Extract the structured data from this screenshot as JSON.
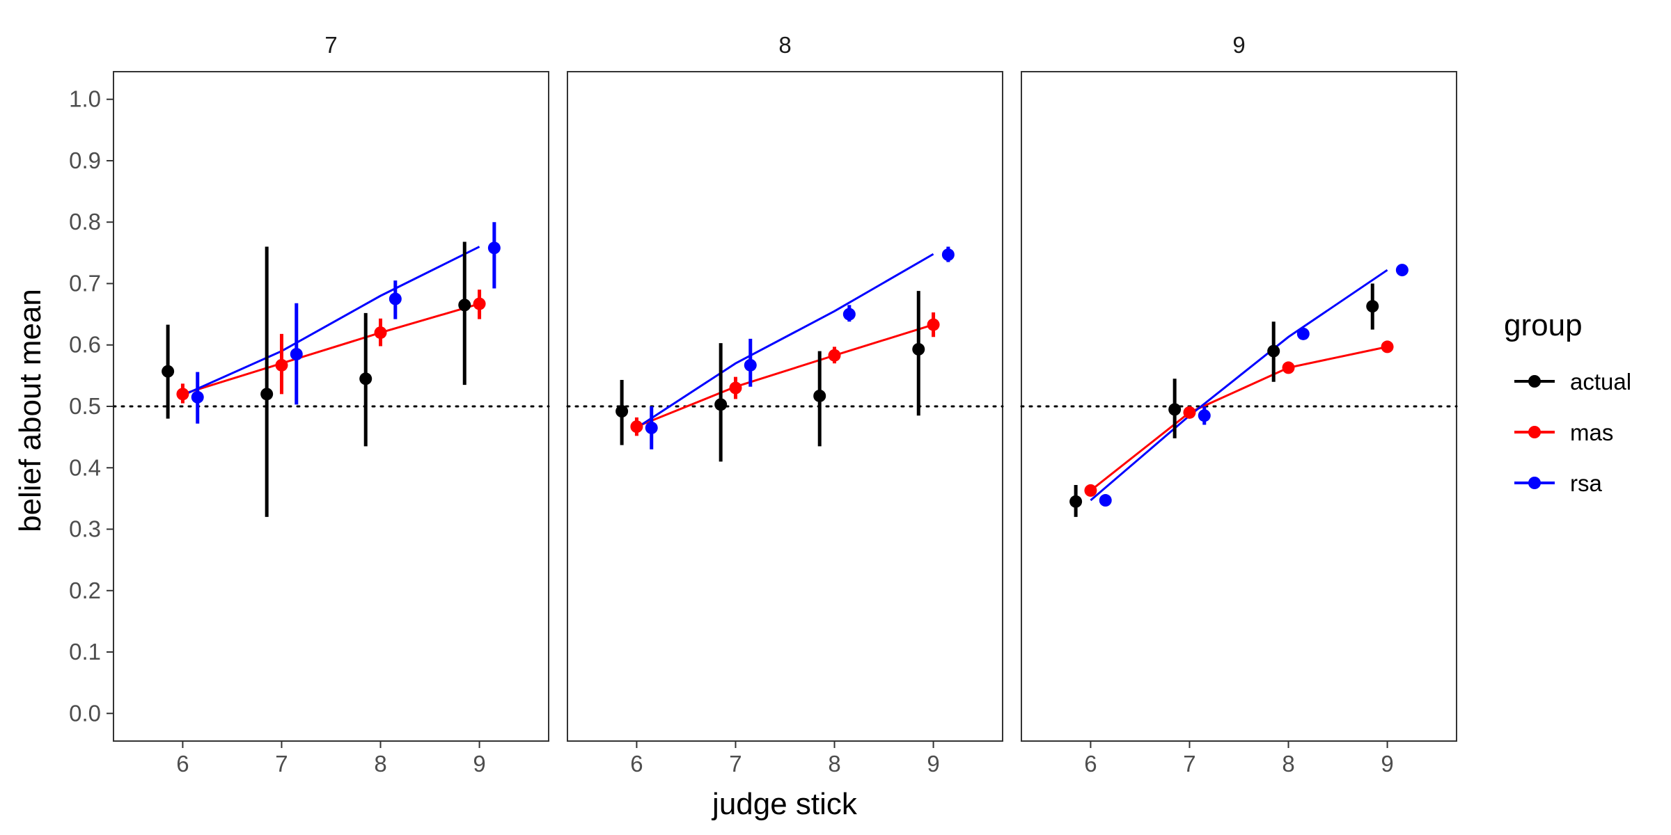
{
  "chart_data": {
    "type": "scatter",
    "title": "",
    "xlabel": "judge stick",
    "ylabel": "belief about mean",
    "ylim": [
      -0.045,
      1.045
    ],
    "xlim": [
      5.3,
      9.7
    ],
    "x_ticks": [
      "6",
      "7",
      "8",
      "9"
    ],
    "y_ticks": [
      "0.0",
      "0.1",
      "0.2",
      "0.3",
      "0.4",
      "0.5",
      "0.6",
      "0.7",
      "0.8",
      "0.9",
      "1.0"
    ],
    "reference_line": {
      "y": 0.5,
      "style": "dotted"
    },
    "grid": false,
    "legend": {
      "title": "group",
      "position": "right"
    },
    "groups": [
      {
        "name": "actual",
        "color": "#000000"
      },
      {
        "name": "mas",
        "color": "#ff0000"
      },
      {
        "name": "rsa",
        "color": "#0000ff"
      }
    ],
    "panels": [
      {
        "label": "7",
        "series": [
          {
            "group": "actual",
            "points": [
              {
                "x": 6,
                "y": 0.557,
                "lo": 0.48,
                "hi": 0.633
              },
              {
                "x": 7,
                "y": 0.52,
                "lo": 0.32,
                "hi": 0.76
              },
              {
                "x": 8,
                "y": 0.545,
                "lo": 0.435,
                "hi": 0.652
              },
              {
                "x": 9,
                "y": 0.665,
                "lo": 0.535,
                "hi": 0.768
              }
            ]
          },
          {
            "group": "mas",
            "points": [
              {
                "x": 6,
                "y": 0.52,
                "lo": 0.505,
                "hi": 0.537
              },
              {
                "x": 7,
                "y": 0.567,
                "lo": 0.52,
                "hi": 0.618
              },
              {
                "x": 8,
                "y": 0.62,
                "lo": 0.598,
                "hi": 0.643
              },
              {
                "x": 9,
                "y": 0.667,
                "lo": 0.642,
                "hi": 0.69
              }
            ],
            "line": [
              {
                "x": 6,
                "y": 0.52
              },
              {
                "x": 7,
                "y": 0.57
              },
              {
                "x": 8,
                "y": 0.62
              },
              {
                "x": 9,
                "y": 0.667
              }
            ]
          },
          {
            "group": "rsa",
            "points": [
              {
                "x": 6,
                "y": 0.515,
                "lo": 0.472,
                "hi": 0.556
              },
              {
                "x": 7,
                "y": 0.585,
                "lo": 0.503,
                "hi": 0.668
              },
              {
                "x": 8,
                "y": 0.675,
                "lo": 0.642,
                "hi": 0.705
              },
              {
                "x": 9,
                "y": 0.758,
                "lo": 0.692,
                "hi": 0.8
              }
            ],
            "line": [
              {
                "x": 6,
                "y": 0.518
              },
              {
                "x": 7,
                "y": 0.59
              },
              {
                "x": 8,
                "y": 0.68
              },
              {
                "x": 9,
                "y": 0.76
              }
            ]
          }
        ]
      },
      {
        "label": "8",
        "series": [
          {
            "group": "actual",
            "points": [
              {
                "x": 6,
                "y": 0.492,
                "lo": 0.437,
                "hi": 0.543
              },
              {
                "x": 7,
                "y": 0.503,
                "lo": 0.41,
                "hi": 0.603
              },
              {
                "x": 8,
                "y": 0.517,
                "lo": 0.435,
                "hi": 0.59
              },
              {
                "x": 9,
                "y": 0.593,
                "lo": 0.485,
                "hi": 0.688
              }
            ]
          },
          {
            "group": "mas",
            "points": [
              {
                "x": 6,
                "y": 0.467,
                "lo": 0.452,
                "hi": 0.482
              },
              {
                "x": 7,
                "y": 0.53,
                "lo": 0.512,
                "hi": 0.548
              },
              {
                "x": 8,
                "y": 0.583,
                "lo": 0.57,
                "hi": 0.597
              },
              {
                "x": 9,
                "y": 0.633,
                "lo": 0.613,
                "hi": 0.653
              }
            ],
            "line": [
              {
                "x": 6,
                "y": 0.467
              },
              {
                "x": 7,
                "y": 0.532
              },
              {
                "x": 8,
                "y": 0.583
              },
              {
                "x": 9,
                "y": 0.633
              }
            ]
          },
          {
            "group": "rsa",
            "points": [
              {
                "x": 6,
                "y": 0.465,
                "lo": 0.43,
                "hi": 0.5
              },
              {
                "x": 7,
                "y": 0.567,
                "lo": 0.532,
                "hi": 0.61
              },
              {
                "x": 8,
                "y": 0.65,
                "lo": 0.638,
                "hi": 0.665
              },
              {
                "x": 9,
                "y": 0.747,
                "lo": 0.735,
                "hi": 0.76
              }
            ],
            "line": [
              {
                "x": 6,
                "y": 0.465
              },
              {
                "x": 7,
                "y": 0.57
              },
              {
                "x": 8,
                "y": 0.655
              },
              {
                "x": 9,
                "y": 0.748
              }
            ]
          }
        ]
      },
      {
        "label": "9",
        "series": [
          {
            "group": "actual",
            "points": [
              {
                "x": 6,
                "y": 0.345,
                "lo": 0.32,
                "hi": 0.372
              },
              {
                "x": 7,
                "y": 0.495,
                "lo": 0.448,
                "hi": 0.545
              },
              {
                "x": 8,
                "y": 0.59,
                "lo": 0.54,
                "hi": 0.638
              },
              {
                "x": 9,
                "y": 0.663,
                "lo": 0.625,
                "hi": 0.7
              }
            ]
          },
          {
            "group": "mas",
            "points": [
              {
                "x": 6,
                "y": 0.363,
                "lo": 0.358,
                "hi": 0.368
              },
              {
                "x": 7,
                "y": 0.49,
                "lo": 0.485,
                "hi": 0.495
              },
              {
                "x": 8,
                "y": 0.563,
                "lo": 0.558,
                "hi": 0.568
              },
              {
                "x": 9,
                "y": 0.597,
                "lo": 0.592,
                "hi": 0.602
              }
            ],
            "line": [
              {
                "x": 6,
                "y": 0.363
              },
              {
                "x": 7,
                "y": 0.49
              },
              {
                "x": 8,
                "y": 0.563
              },
              {
                "x": 9,
                "y": 0.597
              }
            ]
          },
          {
            "group": "rsa",
            "points": [
              {
                "x": 6,
                "y": 0.347,
                "lo": 0.34,
                "hi": 0.355
              },
              {
                "x": 7,
                "y": 0.485,
                "lo": 0.47,
                "hi": 0.5
              },
              {
                "x": 8,
                "y": 0.618,
                "lo": 0.61,
                "hi": 0.626
              },
              {
                "x": 9,
                "y": 0.722,
                "lo": 0.715,
                "hi": 0.73
              }
            ],
            "line": [
              {
                "x": 6,
                "y": 0.347
              },
              {
                "x": 7,
                "y": 0.485
              },
              {
                "x": 8,
                "y": 0.613
              },
              {
                "x": 9,
                "y": 0.722
              }
            ]
          }
        ]
      }
    ]
  }
}
